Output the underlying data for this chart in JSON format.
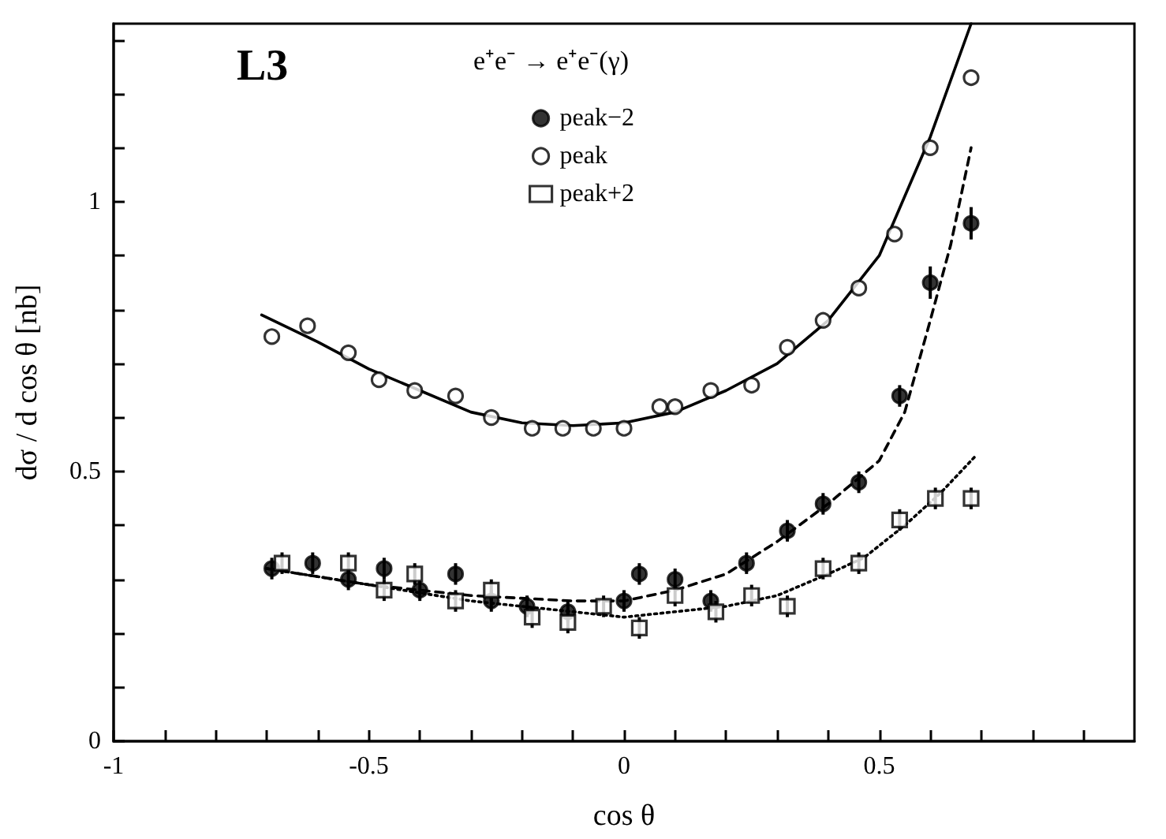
{
  "chart_data": {
    "type": "scatter",
    "xlabel": "cos θ",
    "ylabel": "dσ / d cos θ [nb]",
    "annotations": [
      "L3",
      "e⁺e⁻ → e⁺e⁻(γ)"
    ],
    "xlim": [
      -1,
      1
    ],
    "ylim": [
      0,
      1.33
    ],
    "xticks": [
      -1,
      {
        "value": -0.9,
        "label": null
      },
      {
        "value": -0.8,
        "label": null
      },
      {
        "value": -0.7,
        "label": null
      },
      {
        "value": -0.6,
        "label": null
      },
      -0.5,
      {
        "value": -0.4,
        "label": null
      },
      {
        "value": -0.3,
        "label": null
      },
      {
        "value": -0.2,
        "label": null
      },
      {
        "value": -0.1,
        "label": null
      },
      0,
      {
        "value": 0.1,
        "label": null
      },
      {
        "value": 0.2,
        "label": null
      },
      {
        "value": 0.3,
        "label": null
      },
      {
        "value": 0.4,
        "label": null
      },
      0.5,
      {
        "value": 0.6,
        "label": null
      },
      {
        "value": 0.7,
        "label": null
      },
      {
        "value": 0.8,
        "label": null
      },
      {
        "value": 0.9,
        "label": null
      }
    ],
    "yticks": [
      0,
      {
        "value": 0.1,
        "label": null
      },
      {
        "value": 0.2,
        "label": null
      },
      {
        "value": 0.3,
        "label": null
      },
      {
        "value": 0.4,
        "label": null
      },
      0.5,
      {
        "value": 0.6,
        "label": null
      },
      {
        "value": 0.7,
        "label": null
      },
      {
        "value": 0.8,
        "label": null
      },
      {
        "value": 0.9,
        "label": null
      },
      1,
      {
        "value": 1.1,
        "label": null
      },
      {
        "value": 1.2,
        "label": null
      },
      {
        "value": 1.3,
        "label": null
      }
    ],
    "legend": "top",
    "series": [
      {
        "name": "peak−2",
        "color": "#000000",
        "marker": "circle",
        "x": [
          -0.69,
          -0.61,
          -0.54,
          -0.47,
          -0.4,
          -0.33,
          -0.26,
          -0.19,
          -0.11,
          0.0,
          0.03,
          0.1,
          0.17,
          0.24,
          0.32,
          0.39,
          0.46,
          0.54,
          0.6,
          0.68
        ],
        "values": [
          0.32,
          0.33,
          0.3,
          0.32,
          0.28,
          0.31,
          0.26,
          0.25,
          0.24,
          0.26,
          0.31,
          0.3,
          0.26,
          0.33,
          0.39,
          0.44,
          0.48,
          0.64,
          0.85,
          0.96
        ],
        "errors": [
          0.02,
          0.02,
          0.02,
          0.02,
          0.02,
          0.02,
          0.02,
          0.02,
          0.02,
          0.02,
          0.02,
          0.02,
          0.02,
          0.02,
          0.02,
          0.02,
          0.02,
          0.02,
          0.03,
          0.03
        ]
      },
      {
        "name": "peak",
        "color": "#ffffff",
        "marker": "circle",
        "x": [
          -0.69,
          -0.62,
          -0.54,
          -0.48,
          -0.41,
          -0.33,
          -0.26,
          -0.18,
          -0.12,
          -0.06,
          0.0,
          0.07,
          0.1,
          0.17,
          0.25,
          0.32,
          0.39,
          0.46,
          0.53,
          0.6,
          0.68
        ],
        "values": [
          0.75,
          0.77,
          0.72,
          0.67,
          0.65,
          0.64,
          0.6,
          0.58,
          0.58,
          0.58,
          0.58,
          0.62,
          0.62,
          0.65,
          0.66,
          0.73,
          0.78,
          0.84,
          0.94,
          1.1,
          1.23
        ]
      },
      {
        "name": "peak+2",
        "color": "#ffffff",
        "marker": "square",
        "x": [
          -0.67,
          -0.54,
          -0.47,
          -0.41,
          -0.33,
          -0.26,
          -0.18,
          -0.11,
          -0.04,
          0.03,
          0.1,
          0.18,
          0.25,
          0.32,
          0.39,
          0.46,
          0.54,
          0.61,
          0.68
        ],
        "values": [
          0.33,
          0.33,
          0.28,
          0.31,
          0.26,
          0.28,
          0.23,
          0.22,
          0.25,
          0.21,
          0.27,
          0.24,
          0.27,
          0.25,
          0.32,
          0.33,
          0.41,
          0.45,
          0.45
        ],
        "errors": [
          0.02,
          0.02,
          0.02,
          0.02,
          0.02,
          0.02,
          0.02,
          0.02,
          0.02,
          0.02,
          0.02,
          0.02,
          0.02,
          0.02,
          0.02,
          0.02,
          0.02,
          0.02,
          0.02
        ]
      },
      {
        "type": "line",
        "color": "#000000",
        "marker": "none",
        "line_style": "dashed",
        "x": [
          -0.7,
          -0.5,
          -0.3,
          -0.1,
          0.0,
          0.1,
          0.2,
          0.3,
          0.4,
          0.5,
          0.55,
          0.6,
          0.64,
          0.68
        ],
        "values": [
          0.32,
          0.29,
          0.27,
          0.26,
          0.26,
          0.28,
          0.31,
          0.37,
          0.44,
          0.52,
          0.61,
          0.78,
          0.92,
          1.1
        ]
      },
      {
        "type": "line",
        "color": "#000000",
        "marker": "none",
        "line_style": "solid",
        "x": [
          -0.71,
          -0.6,
          -0.5,
          -0.4,
          -0.3,
          -0.2,
          -0.1,
          0.0,
          0.1,
          0.2,
          0.3,
          0.4,
          0.5,
          0.6,
          0.68
        ],
        "values": [
          0.79,
          0.74,
          0.69,
          0.65,
          0.61,
          0.59,
          0.585,
          0.59,
          0.61,
          0.65,
          0.7,
          0.78,
          0.9,
          1.12,
          1.33
        ]
      },
      {
        "type": "line",
        "color": "#000000",
        "marker": "none",
        "line_style": "dotted",
        "x": [
          -0.7,
          -0.5,
          -0.3,
          -0.1,
          0.0,
          0.1,
          0.2,
          0.3,
          0.4,
          0.47,
          0.55,
          0.62,
          0.69
        ],
        "values": [
          0.32,
          0.29,
          0.26,
          0.24,
          0.23,
          0.24,
          0.25,
          0.27,
          0.31,
          0.34,
          0.4,
          0.46,
          0.53
        ]
      }
    ]
  }
}
